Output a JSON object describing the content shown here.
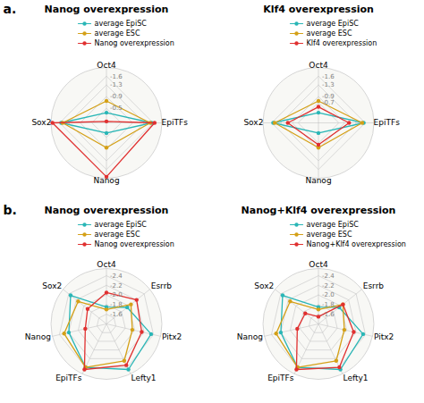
{
  "chart_data": [
    {
      "type": "radar",
      "title": "Nanog overexpression",
      "annotations": [
        "a."
      ],
      "categories": [
        "Oct4",
        "EpiTFs",
        "Nanog",
        "Sox2"
      ],
      "series": [
        {
          "name": "average EpiSC",
          "color": "#29b6b6",
          "values": [
            -0.35,
            -1.55,
            -0.35,
            -1.55
          ]
        },
        {
          "name": "average ESC",
          "color": "#d4a017",
          "values": [
            -0.75,
            -1.5,
            -0.85,
            -1.5
          ]
        },
        {
          "name": "Nanog overexpression",
          "color": "#e03030",
          "values": [
            -0.05,
            -1.65,
            -1.85,
            -1.85
          ]
        }
      ],
      "ylim": [
        0.0,
        -1.9
      ],
      "yticks": [
        -0.5,
        -0.9,
        -1.3,
        -1.6
      ],
      "grid": true,
      "legend": "upper right"
    },
    {
      "type": "radar",
      "title": "Klf4 overexpression",
      "categories": [
        "Oct4",
        "EpiTFs",
        "Nanog",
        "Sox2"
      ],
      "series": [
        {
          "name": "average EpiSC",
          "color": "#29b6b6",
          "values": [
            -0.35,
            -1.55,
            -0.35,
            -1.55
          ]
        },
        {
          "name": "average ESC",
          "color": "#d4a017",
          "values": [
            -0.75,
            -1.5,
            -0.85,
            -1.5
          ]
        },
        {
          "name": "Klf4 overexpression",
          "color": "#e03030",
          "values": [
            -0.55,
            -1.05,
            -0.75,
            -1.05
          ]
        }
      ],
      "ylim": [
        0.0,
        -1.9
      ],
      "yticks": [
        -0.7,
        -0.9,
        -1.3,
        -1.6
      ],
      "grid": true,
      "legend": "upper right"
    },
    {
      "type": "radar",
      "title": "Nanog overexpression",
      "annotations": [
        "b."
      ],
      "categories": [
        "Oct4",
        "Esrrb",
        "Pitx2",
        "Lefty1",
        "EpiTFs",
        "Nanog",
        "Sox2"
      ],
      "series": [
        {
          "name": "average EpiSC",
          "color": "#29b6b6",
          "values": [
            -1.75,
            -1.95,
            -2.35,
            -2.45,
            -2.4,
            -2.2,
            -2.35
          ]
        },
        {
          "name": "average ESC",
          "color": "#d4a017",
          "values": [
            -1.7,
            -2.05,
            -1.95,
            -2.25,
            -2.4,
            -2.3,
            -2.15
          ]
        },
        {
          "name": "Nanog overexpression",
          "color": "#e03030",
          "values": [
            -2.05,
            -2.2,
            -2.15,
            -2.35,
            -2.45,
            -1.85,
            -1.9
          ]
        }
      ],
      "ylim": [
        -1.4,
        -2.55
      ],
      "yticks": [
        -1.6,
        -1.8,
        {
          "value": -2.0,
          "label": "-2.0"
        },
        -2.2,
        -2.4
      ],
      "grid": true,
      "legend": "upper right"
    },
    {
      "type": "radar",
      "title": "Nanog+Klf4 overexpression",
      "categories": [
        "Oct4",
        "Esrrb",
        "Pitx2",
        "Lefty1",
        "EpiTFs",
        "Nanog",
        "Sox2"
      ],
      "series": [
        {
          "name": "average EpiSC",
          "color": "#29b6b6",
          "values": [
            -1.75,
            -1.95,
            -2.35,
            -2.45,
            -2.4,
            -2.2,
            -2.35
          ]
        },
        {
          "name": "average ESC",
          "color": "#d4a017",
          "values": [
            -1.7,
            -2.05,
            -1.95,
            -2.25,
            -2.4,
            -2.3,
            -2.15
          ]
        },
        {
          "name": "Nanog+Klf4 overexpression",
          "color": "#e03030",
          "values": [
            -1.55,
            -2.05,
            -2.15,
            -2.4,
            -2.45,
            -1.85,
            -1.75
          ]
        }
      ],
      "ylim": [
        -1.4,
        -2.55
      ],
      "yticks": [
        -1.6,
        -1.8,
        {
          "value": -2.0,
          "label": "-2.0"
        },
        -2.2,
        -2.4
      ],
      "grid": true,
      "legend": "upper right"
    }
  ]
}
